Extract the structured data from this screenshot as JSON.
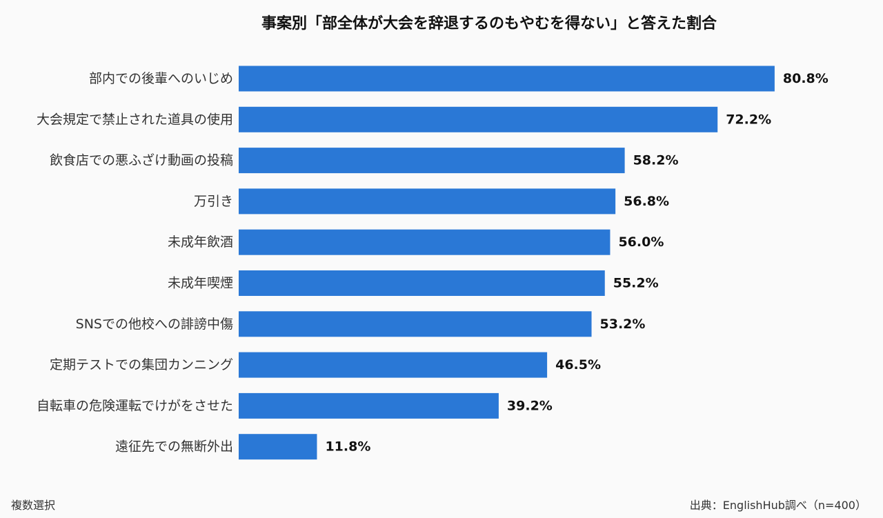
{
  "chart_data": {
    "type": "bar",
    "orientation": "horizontal",
    "title": "事案別「部全体が大会を辞退するのもやむを得ない」と答えた割合",
    "categories": [
      "部内での後輩へのいじめ",
      "大会規定で禁止された道具の使用",
      "飲食店での悪ふざけ動画の投稿",
      "万引き",
      "未成年飲酒",
      "未成年喫煙",
      "SNSでの他校への誹謗中傷",
      "定期テストでの集団カンニング",
      "自転車の危険運転でけがをさせた",
      "遠征先での無断外出"
    ],
    "values": [
      80.8,
      72.2,
      58.2,
      56.8,
      56.0,
      55.2,
      53.2,
      46.5,
      39.2,
      11.8
    ],
    "value_labels": [
      "80.8%",
      "72.2%",
      "58.2%",
      "56.8%",
      "56.0%",
      "55.2%",
      "53.2%",
      "46.5%",
      "39.2%",
      "11.8%"
    ],
    "unit": "%",
    "xlim": [
      0,
      100
    ],
    "grid": false,
    "legend": "none",
    "bar_color": "#2a78d6"
  },
  "footnote_left": "複数選択",
  "footnote_right": "出典：EnglishHub調べ（n=400）"
}
